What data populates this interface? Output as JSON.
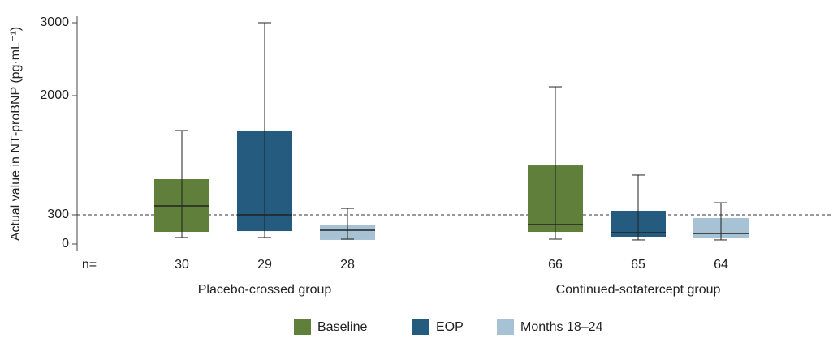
{
  "chart_data": {
    "type": "box",
    "y_label": "Actual value in NT-proBNP (pg·mL⁻¹)",
    "groups": [
      "Placebo-crossed group",
      "Continued-sotatercept group"
    ],
    "n_label": "n=",
    "ylim": [
      0,
      3000
    ],
    "yticks": [
      0,
      300,
      2000,
      3000
    ],
    "reference_line": 300,
    "series": [
      {
        "name": "Baseline",
        "color": "#5f7f3a",
        "n": [
          30,
          66
        ],
        "low": [
          67,
          50
        ],
        "q1": [
          125,
          125
        ],
        "median": [
          427,
          200
        ],
        "q3": [
          809,
          1005
        ],
        "high": [
          1503,
          2122
        ]
      },
      {
        "name": "EOP",
        "color": "#245b7e",
        "n": [
          29,
          65
        ],
        "low": [
          67,
          42
        ],
        "q1": [
          133,
          75
        ],
        "median": [
          300,
          117
        ],
        "q3": [
          1503,
          358
        ],
        "high": [
          3000,
          867
        ]
      },
      {
        "name": "Months 18–24",
        "color": "#a7c1d5",
        "n": [
          28,
          64
        ],
        "low": [
          50,
          42
        ],
        "q1": [
          42,
          58
        ],
        "median": [
          142,
          108
        ],
        "q3": [
          192,
          267
        ],
        "high": [
          392,
          473
        ]
      }
    ]
  }
}
